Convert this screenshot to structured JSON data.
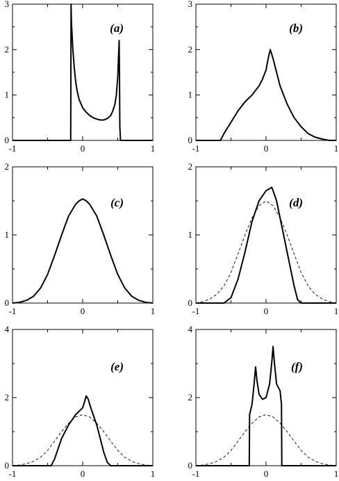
{
  "chart_data": [
    {
      "type": "line",
      "panel_label": "(a)",
      "xlim": [
        -1,
        1
      ],
      "ylim": [
        0,
        3
      ],
      "x_ticks": [
        "-1",
        "0",
        "1"
      ],
      "y_ticks": [
        "0",
        "1",
        "2",
        "3"
      ],
      "series": [
        {
          "style": "solid",
          "x": [
            -1.0,
            -0.17,
            -0.165,
            -0.16,
            -0.14,
            -0.12,
            -0.1,
            -0.08,
            -0.05,
            0.0,
            0.05,
            0.1,
            0.15,
            0.2,
            0.25,
            0.3,
            0.35,
            0.4,
            0.43,
            0.46,
            0.48,
            0.5,
            0.51,
            0.52,
            0.525,
            0.53,
            0.54,
            1.0
          ],
          "y": [
            0.0,
            0.0,
            3.0,
            2.6,
            2.0,
            1.6,
            1.3,
            1.1,
            0.9,
            0.72,
            0.62,
            0.55,
            0.5,
            0.47,
            0.45,
            0.45,
            0.48,
            0.55,
            0.65,
            0.8,
            1.0,
            1.4,
            1.8,
            2.2,
            1.5,
            0.3,
            0.0,
            0.0
          ]
        }
      ]
    },
    {
      "type": "line",
      "panel_label": "(b)",
      "xlim": [
        -1,
        1
      ],
      "ylim": [
        0,
        3
      ],
      "x_ticks": [
        "-1",
        "0",
        "1"
      ],
      "y_ticks": [
        "0",
        "1",
        "2",
        "3"
      ],
      "series": [
        {
          "style": "solid",
          "x": [
            -1.0,
            -0.65,
            -0.6,
            -0.5,
            -0.4,
            -0.3,
            -0.2,
            -0.1,
            -0.05,
            0.0,
            0.03,
            0.06,
            0.1,
            0.15,
            0.2,
            0.3,
            0.4,
            0.5,
            0.6,
            0.7,
            0.8,
            0.9,
            1.0
          ],
          "y": [
            0.0,
            0.0,
            0.15,
            0.4,
            0.65,
            0.85,
            1.0,
            1.2,
            1.35,
            1.55,
            1.8,
            2.0,
            1.8,
            1.5,
            1.2,
            0.8,
            0.5,
            0.3,
            0.15,
            0.07,
            0.03,
            0.0,
            0.0
          ]
        }
      ]
    },
    {
      "type": "line",
      "panel_label": "(c)",
      "xlim": [
        -1,
        1
      ],
      "ylim": [
        0,
        2
      ],
      "x_ticks": [
        "-1",
        "0",
        "1"
      ],
      "y_ticks": [
        "0",
        "1",
        "2"
      ],
      "series": [
        {
          "style": "solid",
          "x": [
            -1.0,
            -0.9,
            -0.8,
            -0.7,
            -0.6,
            -0.5,
            -0.4,
            -0.3,
            -0.2,
            -0.1,
            -0.05,
            0.0,
            0.05,
            0.1,
            0.2,
            0.3,
            0.4,
            0.5,
            0.6,
            0.7,
            0.8,
            0.9,
            1.0
          ],
          "y": [
            0.0,
            0.01,
            0.04,
            0.1,
            0.22,
            0.42,
            0.7,
            1.0,
            1.28,
            1.45,
            1.5,
            1.53,
            1.5,
            1.45,
            1.28,
            1.0,
            0.7,
            0.42,
            0.22,
            0.1,
            0.04,
            0.01,
            0.0
          ]
        }
      ]
    },
    {
      "type": "line",
      "panel_label": "(d)",
      "xlim": [
        -1,
        1
      ],
      "ylim": [
        0,
        2
      ],
      "x_ticks": [
        "-1",
        "0",
        "1"
      ],
      "y_ticks": [
        "0",
        "1",
        "2"
      ],
      "series": [
        {
          "style": "solid",
          "x": [
            -1.0,
            -0.6,
            -0.5,
            -0.4,
            -0.3,
            -0.2,
            -0.1,
            0.0,
            0.05,
            0.08,
            0.1,
            0.15,
            0.2,
            0.3,
            0.4,
            0.45,
            0.5,
            1.0
          ],
          "y": [
            0.0,
            0.0,
            0.08,
            0.35,
            0.75,
            1.2,
            1.5,
            1.65,
            1.68,
            1.7,
            1.65,
            1.5,
            1.25,
            0.75,
            0.25,
            0.05,
            0.0,
            0.0
          ]
        },
        {
          "style": "dashed",
          "x": [
            -1.0,
            -0.9,
            -0.8,
            -0.7,
            -0.6,
            -0.5,
            -0.4,
            -0.3,
            -0.2,
            -0.1,
            0.0,
            0.1,
            0.2,
            0.3,
            0.4,
            0.5,
            0.6,
            0.7,
            0.8,
            0.9,
            1.0
          ],
          "y": [
            0.0,
            0.02,
            0.06,
            0.13,
            0.25,
            0.45,
            0.72,
            1.0,
            1.25,
            1.43,
            1.5,
            1.43,
            1.25,
            1.0,
            0.72,
            0.45,
            0.25,
            0.13,
            0.06,
            0.02,
            0.0
          ]
        }
      ]
    },
    {
      "type": "line",
      "panel_label": "(e)",
      "xlim": [
        -1,
        1
      ],
      "ylim": [
        0,
        4
      ],
      "x_ticks": [
        "-1",
        "0",
        "1"
      ],
      "y_ticks": [
        "0",
        "2",
        "4"
      ],
      "series": [
        {
          "style": "solid",
          "x": [
            -1.0,
            -0.45,
            -0.4,
            -0.3,
            -0.2,
            -0.1,
            0.0,
            0.03,
            0.05,
            0.08,
            0.1,
            0.15,
            0.2,
            0.25,
            0.3,
            0.35,
            0.4,
            1.0
          ],
          "y": [
            0.0,
            0.0,
            0.2,
            0.8,
            1.2,
            1.5,
            1.7,
            1.9,
            2.05,
            1.95,
            1.8,
            1.5,
            1.2,
            0.8,
            0.4,
            0.1,
            0.0,
            0.0
          ]
        },
        {
          "style": "dashed",
          "x": [
            -1.0,
            -0.9,
            -0.8,
            -0.7,
            -0.6,
            -0.5,
            -0.4,
            -0.3,
            -0.2,
            -0.1,
            0.0,
            0.1,
            0.2,
            0.3,
            0.4,
            0.5,
            0.6,
            0.7,
            0.8,
            0.9,
            1.0
          ],
          "y": [
            0.0,
            0.02,
            0.06,
            0.13,
            0.25,
            0.45,
            0.72,
            1.0,
            1.25,
            1.43,
            1.5,
            1.43,
            1.25,
            1.0,
            0.72,
            0.45,
            0.25,
            0.13,
            0.06,
            0.02,
            0.0
          ]
        }
      ]
    },
    {
      "type": "line",
      "panel_label": "(f)",
      "xlim": [
        -1,
        1
      ],
      "ylim": [
        0,
        4
      ],
      "x_ticks": [
        "-1",
        "0",
        "1"
      ],
      "y_ticks": [
        "0",
        "2",
        "4"
      ],
      "series": [
        {
          "style": "solid",
          "x": [
            -1.0,
            -0.24,
            -0.235,
            -0.2,
            -0.17,
            -0.15,
            -0.13,
            -0.1,
            -0.05,
            0.0,
            0.05,
            0.08,
            0.1,
            0.12,
            0.15,
            0.2,
            0.22,
            0.225,
            1.0
          ],
          "y": [
            0.0,
            0.0,
            1.5,
            1.8,
            2.4,
            2.9,
            2.5,
            2.1,
            1.95,
            2.0,
            2.4,
            3.0,
            3.5,
            3.0,
            2.4,
            2.2,
            1.8,
            0.0,
            0.0
          ]
        },
        {
          "style": "dashed",
          "x": [
            -1.0,
            -0.9,
            -0.8,
            -0.7,
            -0.6,
            -0.5,
            -0.4,
            -0.3,
            -0.2,
            -0.1,
            0.0,
            0.1,
            0.2,
            0.3,
            0.4,
            0.5,
            0.6,
            0.7,
            0.8,
            0.9,
            1.0
          ],
          "y": [
            0.0,
            0.02,
            0.06,
            0.13,
            0.25,
            0.45,
            0.72,
            1.0,
            1.25,
            1.43,
            1.5,
            1.43,
            1.25,
            1.0,
            0.72,
            0.45,
            0.25,
            0.13,
            0.06,
            0.02,
            0.0
          ]
        }
      ]
    }
  ]
}
